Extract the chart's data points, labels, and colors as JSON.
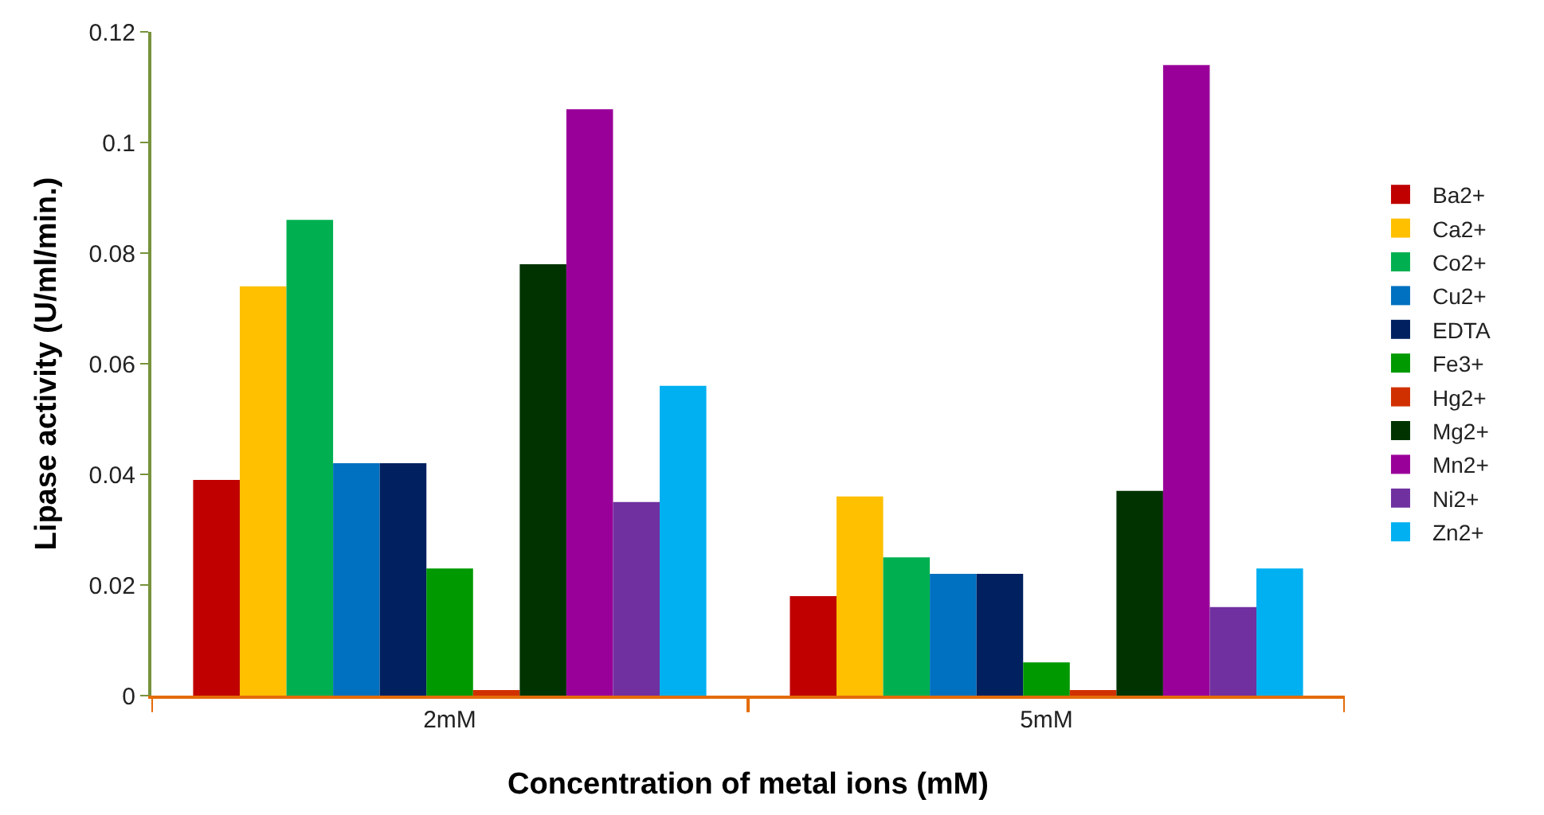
{
  "chart_data": {
    "type": "bar",
    "xlabel": "Concentration of metal ions (mM)",
    "ylabel": "Lipase activity (U/ml/min.)",
    "categories": [
      "2mM",
      "5mM"
    ],
    "series": [
      {
        "name": "Ba2+",
        "color": "#c00000",
        "values": [
          0.039,
          0.018
        ]
      },
      {
        "name": "Ca2+",
        "color": "#ffc000",
        "values": [
          0.074,
          0.036
        ]
      },
      {
        "name": "Co2+",
        "color": "#00b050",
        "values": [
          0.086,
          0.025
        ]
      },
      {
        "name": "Cu2+",
        "color": "#0070c0",
        "values": [
          0.042,
          0.022
        ]
      },
      {
        "name": "EDTA",
        "color": "#002060",
        "values": [
          0.042,
          0.022
        ]
      },
      {
        "name": "Fe3+",
        "color": "#009900",
        "values": [
          0.023,
          0.006
        ]
      },
      {
        "name": "Hg2+",
        "color": "#d03000",
        "values": [
          0.001,
          0.001
        ]
      },
      {
        "name": "Mg2+",
        "color": "#003300",
        "values": [
          0.078,
          0.037
        ]
      },
      {
        "name": "Mn2+",
        "color": "#990099",
        "values": [
          0.106,
          0.114
        ]
      },
      {
        "name": "Ni2+",
        "color": "#7030a0",
        "values": [
          0.035,
          0.016
        ]
      },
      {
        "name": "Zn2+",
        "color": "#00b0f0",
        "values": [
          0.056,
          0.023
        ]
      }
    ],
    "ylim": [
      0,
      0.12
    ],
    "yticks": [
      0,
      0.02,
      0.04,
      0.06,
      0.08,
      0.1,
      0.12
    ],
    "legend": "right"
  }
}
